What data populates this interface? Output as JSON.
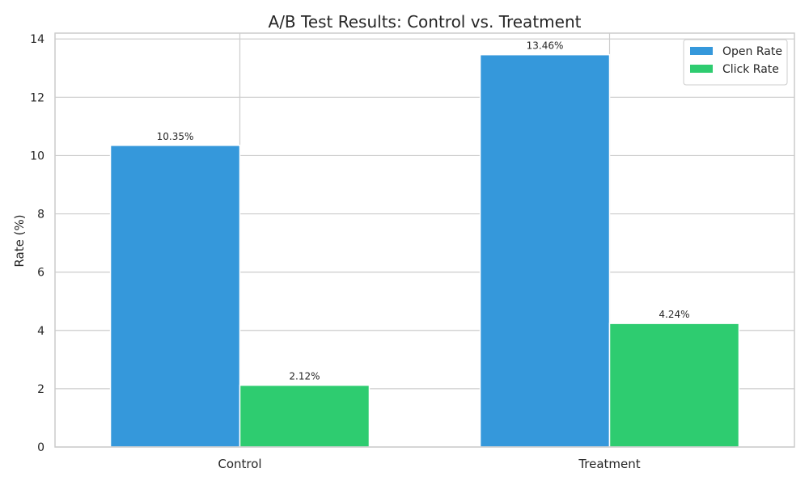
{
  "chart_data": {
    "type": "bar",
    "title": "A/B Test Results: Control vs. Treatment",
    "xlabel": "",
    "ylabel": "Rate (%)",
    "categories": [
      "Control",
      "Treatment"
    ],
    "series": [
      {
        "name": "Open Rate",
        "values": [
          10.35,
          13.46
        ],
        "labels": [
          "10.35%",
          "13.46%"
        ],
        "color": "#3598db"
      },
      {
        "name": "Click Rate",
        "values": [
          2.12,
          4.24
        ],
        "labels": [
          "2.12%",
          "4.24%"
        ],
        "color": "#2ecc70"
      }
    ],
    "ylim": [
      0,
      14.2
    ],
    "yticks": [
      0,
      2,
      4,
      6,
      8,
      10,
      12,
      14
    ],
    "grid": true,
    "legend_position": "top-right"
  }
}
